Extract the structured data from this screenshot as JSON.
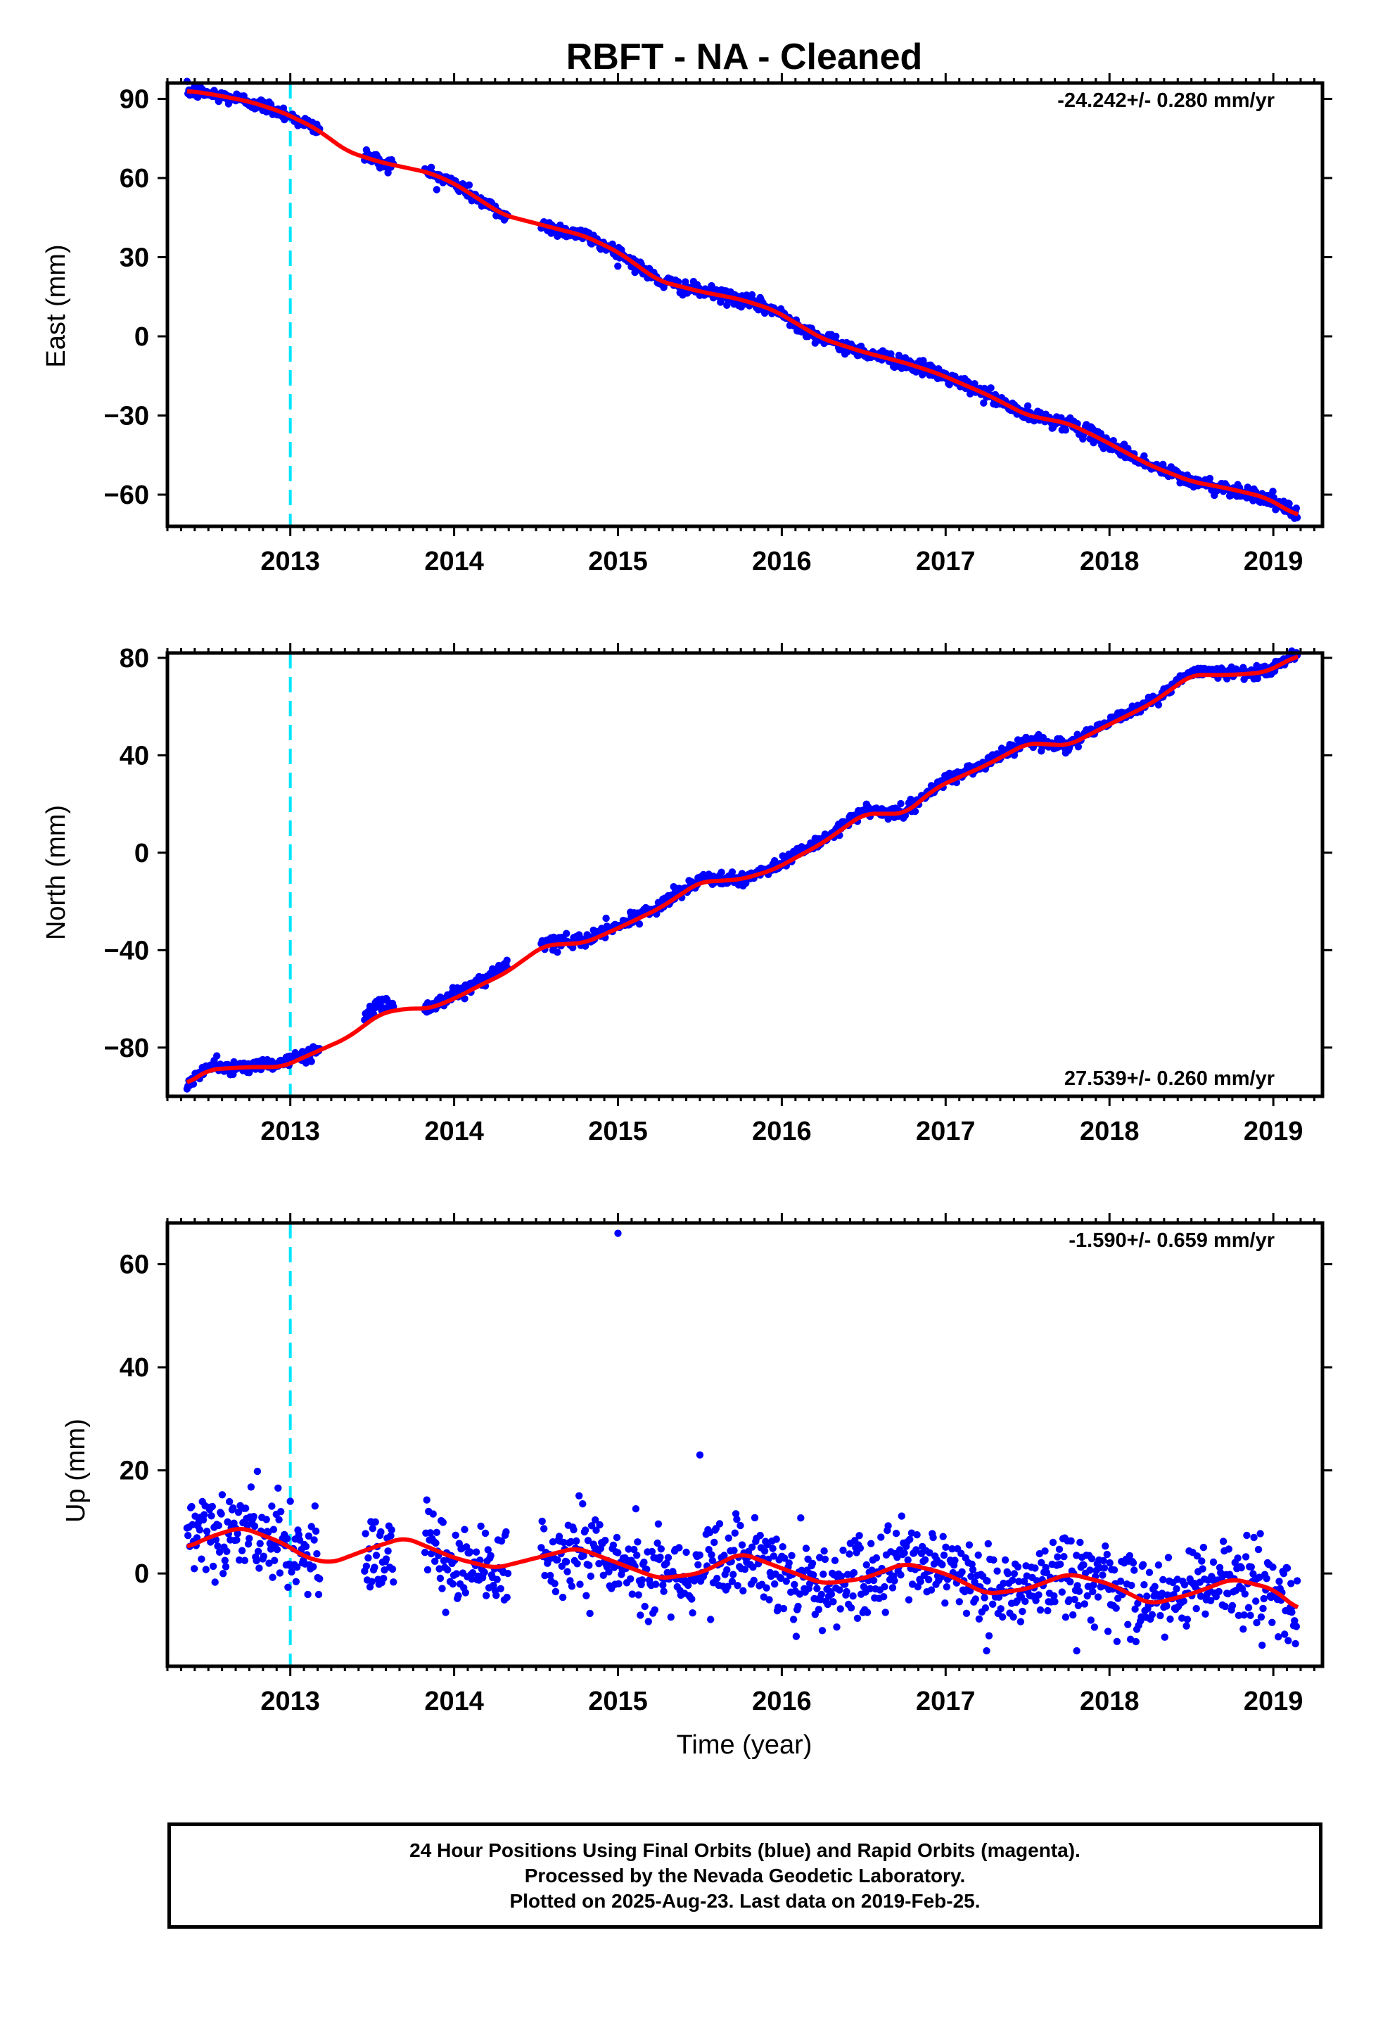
{
  "title": "RBFT  - NA - Cleaned",
  "xlabel": "Time (year)",
  "footer": {
    "line1": "24 Hour Positions Using Final Orbits (blue) and Rapid Orbits (magenta).",
    "line2": "Processed by the Nevada Geodetic Laboratory.",
    "line3": "Plotted on 2025-Aug-23. Last data on 2019-Feb-25."
  },
  "colors": {
    "final_orbits": "#0000ff",
    "fit": "#ff0000",
    "event_line": "#00e5ff",
    "axes": "#000000"
  },
  "chart_data": [
    {
      "type": "scatter",
      "ylabel": "East (mm)",
      "rate": "-24.242+/- 0.280 mm/yr",
      "rate_position": "top-right",
      "xlim": [
        2012.25,
        2019.3
      ],
      "ylim": [
        -72,
        96
      ],
      "xticks": [
        2013,
        2014,
        2015,
        2016,
        2017,
        2018,
        2019
      ],
      "yticks": [
        -60,
        -30,
        0,
        30,
        60,
        90
      ],
      "event_line_x": 2013.0,
      "data_start": 2012.37,
      "data_end": 2019.15,
      "gaps": [
        [
          2013.18,
          2013.45
        ],
        [
          2013.63,
          2013.82
        ],
        [
          2014.33,
          2014.53
        ]
      ],
      "series": [
        {
          "role": "points",
          "color": "#0000ff",
          "noise": 1.3,
          "x": [
            2012.37,
            2012.5,
            2012.75,
            2012.95,
            2013.15,
            2013.55,
            2013.85,
            2014.0,
            2014.2,
            2014.3,
            2014.55,
            2014.8,
            2015.0,
            2015.25,
            2015.5,
            2015.75,
            2015.95,
            2016.25,
            2016.5,
            2016.75,
            2016.95,
            2017.25,
            2017.5,
            2017.75,
            2017.95,
            2018.25,
            2018.5,
            2018.75,
            2018.95,
            2019.15
          ],
          "y": [
            93,
            92,
            89,
            85,
            79,
            66,
            62,
            58,
            50,
            46,
            42,
            38,
            32,
            21,
            17,
            14,
            10,
            -1,
            -6,
            -10,
            -14,
            -22,
            -30,
            -33,
            -39,
            -49,
            -55,
            -58,
            -61,
            -68
          ]
        },
        {
          "role": "fit",
          "color": "#ff0000",
          "x": [
            2012.37,
            2012.5,
            2012.75,
            2012.95,
            2013.15,
            2013.35,
            2013.55,
            2013.85,
            2014.0,
            2014.2,
            2014.3,
            2014.55,
            2014.8,
            2015.0,
            2015.25,
            2015.5,
            2015.75,
            2015.95,
            2016.25,
            2016.5,
            2016.75,
            2016.95,
            2017.25,
            2017.5,
            2017.75,
            2017.95,
            2018.25,
            2018.5,
            2018.75,
            2018.95,
            2019.15
          ],
          "y": [
            93,
            92,
            89,
            85,
            79,
            70,
            66,
            62,
            58,
            50,
            46,
            42,
            38,
            32,
            21,
            17,
            14,
            10,
            -1,
            -6,
            -10,
            -14,
            -22,
            -30,
            -33,
            -39,
            -49,
            -55,
            -58,
            -61,
            -68
          ]
        }
      ]
    },
    {
      "type": "scatter",
      "ylabel": "North (mm)",
      "rate": "27.539+/- 0.260 mm/yr",
      "rate_position": "bottom-right",
      "xlim": [
        2012.25,
        2019.3
      ],
      "ylim": [
        -100,
        82
      ],
      "xticks": [
        2013,
        2014,
        2015,
        2016,
        2017,
        2018,
        2019
      ],
      "yticks": [
        -80,
        -40,
        0,
        40,
        80
      ],
      "event_line_x": 2013.0,
      "data_start": 2012.37,
      "data_end": 2019.15,
      "gaps": [
        [
          2013.18,
          2013.45
        ],
        [
          2013.63,
          2013.82
        ],
        [
          2014.33,
          2014.53
        ]
      ],
      "series": [
        {
          "role": "points",
          "color": "#0000ff",
          "noise": 1.3,
          "x": [
            2012.37,
            2012.5,
            2012.75,
            2012.95,
            2013.15,
            2013.55,
            2013.85,
            2014.0,
            2014.2,
            2014.3,
            2014.55,
            2014.8,
            2015.0,
            2015.25,
            2015.5,
            2015.75,
            2015.95,
            2016.25,
            2016.5,
            2016.75,
            2016.95,
            2017.25,
            2017.5,
            2017.75,
            2017.95,
            2018.25,
            2018.5,
            2018.75,
            2018.95,
            2019.15
          ],
          "y": [
            -95,
            -88,
            -88,
            -86,
            -82,
            -62,
            -64,
            -58,
            -52,
            -48,
            -37,
            -36,
            -30,
            -22,
            -11,
            -11,
            -6,
            5,
            17,
            16,
            28,
            37,
            46,
            44,
            52,
            62,
            74,
            74,
            74,
            82
          ]
        },
        {
          "role": "fit",
          "color": "#ff0000",
          "x": [
            2012.37,
            2012.5,
            2012.75,
            2012.95,
            2013.15,
            2013.35,
            2013.55,
            2013.7,
            2013.85,
            2014.0,
            2014.2,
            2014.3,
            2014.55,
            2014.8,
            2015.0,
            2015.25,
            2015.5,
            2015.75,
            2015.95,
            2016.25,
            2016.5,
            2016.75,
            2016.95,
            2017.25,
            2017.5,
            2017.75,
            2017.95,
            2018.25,
            2018.5,
            2018.75,
            2018.95,
            2019.15
          ],
          "y": [
            -95,
            -89,
            -88,
            -88,
            -82,
            -76,
            -66,
            -64,
            -64,
            -60,
            -53,
            -50,
            -38,
            -37,
            -31,
            -23,
            -12,
            -11,
            -7,
            4,
            16,
            16,
            27,
            36,
            45,
            44,
            51,
            61,
            73,
            73,
            74,
            81
          ]
        }
      ]
    },
    {
      "type": "scatter",
      "ylabel": "Up (mm)",
      "rate": "-1.590+/- 0.659 mm/yr",
      "rate_position": "top-right",
      "xlim": [
        2012.25,
        2019.3
      ],
      "ylim": [
        -18,
        68
      ],
      "xticks": [
        2013,
        2014,
        2015,
        2016,
        2017,
        2018,
        2019
      ],
      "yticks": [
        0,
        20,
        40,
        60
      ],
      "event_line_x": 2013.0,
      "data_start": 2012.37,
      "data_end": 2019.15,
      "gaps": [
        [
          2013.18,
          2013.45
        ],
        [
          2013.63,
          2013.82
        ],
        [
          2014.33,
          2014.53
        ]
      ],
      "series": [
        {
          "role": "points",
          "color": "#0000ff",
          "noise": 4.0,
          "x": [
            2012.37,
            2012.5,
            2012.7,
            2012.95,
            2013.1,
            2013.5,
            2013.85,
            2014.0,
            2014.2,
            2014.3,
            2014.55,
            2014.75,
            2015.0,
            2015.25,
            2015.5,
            2015.75,
            2016.0,
            2016.25,
            2016.5,
            2016.75,
            2017.0,
            2017.25,
            2017.5,
            2017.75,
            2018.0,
            2018.25,
            2018.5,
            2018.75,
            2019.0,
            2019.15
          ],
          "y": [
            5,
            7,
            9,
            6,
            3,
            4,
            6,
            3,
            1,
            1,
            3,
            5,
            2,
            -1,
            1,
            4,
            1,
            -2,
            -1,
            2,
            0,
            -4,
            -3,
            0,
            -2,
            -6,
            -4,
            -1,
            -3,
            -7
          ]
        },
        {
          "role": "outliers",
          "color": "#0000ff",
          "x": [
            2015.0,
            2015.5,
            2013.0,
            2017.25,
            2017.8
          ],
          "y": [
            66,
            23,
            14,
            -15,
            -15
          ]
        },
        {
          "role": "fit",
          "color": "#ff0000",
          "x": [
            2012.37,
            2012.5,
            2012.7,
            2012.95,
            2013.1,
            2013.25,
            2013.5,
            2013.7,
            2014.0,
            2014.25,
            2014.5,
            2014.75,
            2015.0,
            2015.25,
            2015.5,
            2015.75,
            2016.0,
            2016.25,
            2016.5,
            2016.75,
            2017.0,
            2017.25,
            2017.5,
            2017.75,
            2018.0,
            2018.25,
            2018.5,
            2018.75,
            2019.0,
            2019.15
          ],
          "y": [
            5,
            7,
            9,
            6,
            3,
            2,
            5,
            7,
            3,
            1,
            3,
            5,
            2,
            -1,
            0,
            4,
            1,
            -2,
            -1,
            2,
            0,
            -4,
            -3,
            0,
            -2,
            -6,
            -4,
            -1,
            -3,
            -7
          ]
        }
      ]
    }
  ]
}
